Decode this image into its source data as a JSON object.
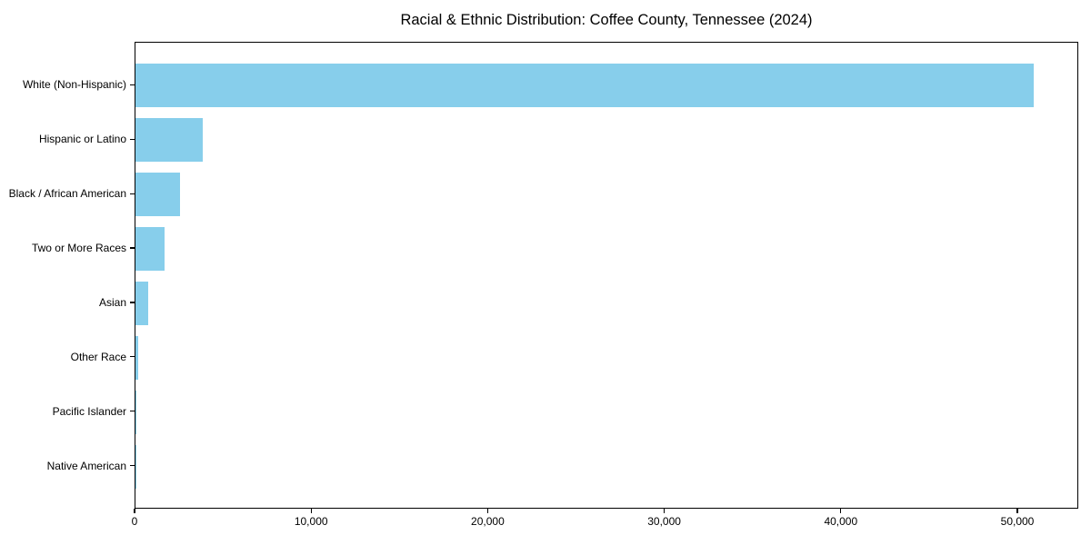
{
  "chart_data": {
    "type": "bar",
    "orientation": "horizontal",
    "title": "Racial & Ethnic Distribution: Coffee County, Tennessee (2024)",
    "categories": [
      "White (Non-Hispanic)",
      "Hispanic or Latino",
      "Black / African American",
      "Two or More Races",
      "Asian",
      "Other Race",
      "Pacific Islander",
      "Native American"
    ],
    "values": [
      50900,
      3800,
      2500,
      1650,
      720,
      150,
      20,
      10
    ],
    "bar_color": "#87CEEB",
    "xlabel": "",
    "ylabel": "",
    "xlim": [
      0,
      53450
    ],
    "x_ticks": [
      0,
      10000,
      20000,
      30000,
      40000,
      50000
    ],
    "x_tick_labels": [
      "0",
      "10,000",
      "20,000",
      "30,000",
      "40,000",
      "50,000"
    ],
    "grid": false,
    "legend": null,
    "sorted": "descending"
  }
}
